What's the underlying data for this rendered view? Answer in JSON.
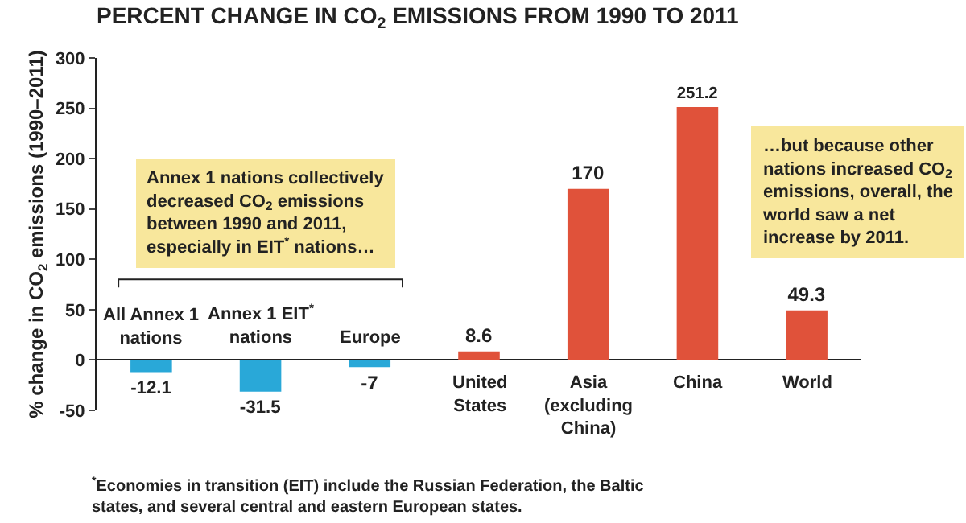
{
  "chart_data": {
    "type": "bar",
    "title": "PERCENT CHANGE IN CO$_{2}$ EMISSIONS FROM 1990 TO 2011",
    "ylabel": "% change in CO$_{2}$ emissions (1990–2011)",
    "categories": [
      "All Annex 1\nnations",
      "Annex 1 EIT$^{*}$\nnations",
      "Europe",
      "United\nStates",
      "Asia\n(excluding\nChina)",
      "China",
      "World"
    ],
    "values": [
      -12.1,
      -31.5,
      -7,
      8.6,
      170,
      251.2,
      49.3
    ],
    "colors": [
      "#29a8d8",
      "#29a8d8",
      "#29a8d8",
      "#e0523a",
      "#e0523a",
      "#e0523a",
      "#e0523a"
    ],
    "data_labels": true,
    "ylim": [
      -50,
      300
    ],
    "yticks": [
      -50,
      0,
      50,
      100,
      150,
      200,
      250,
      300
    ],
    "grid": false,
    "legend": false,
    "annotations": [
      "Annex 1 nations collectively\ndecreased CO$_{2}$ emissions\nbetween 1990 and 2011,\nespecially in EIT$^{*}$ nations…",
      "…but because other\nnations increased CO$_{2}$\nemissions, overall, the\nworld saw a net\nincrease by 2011.",
      "$^{*}$Economies in transition (EIT) include the Russian Federation, the Baltic\nstates, and several central and eastern European states."
    ]
  }
}
